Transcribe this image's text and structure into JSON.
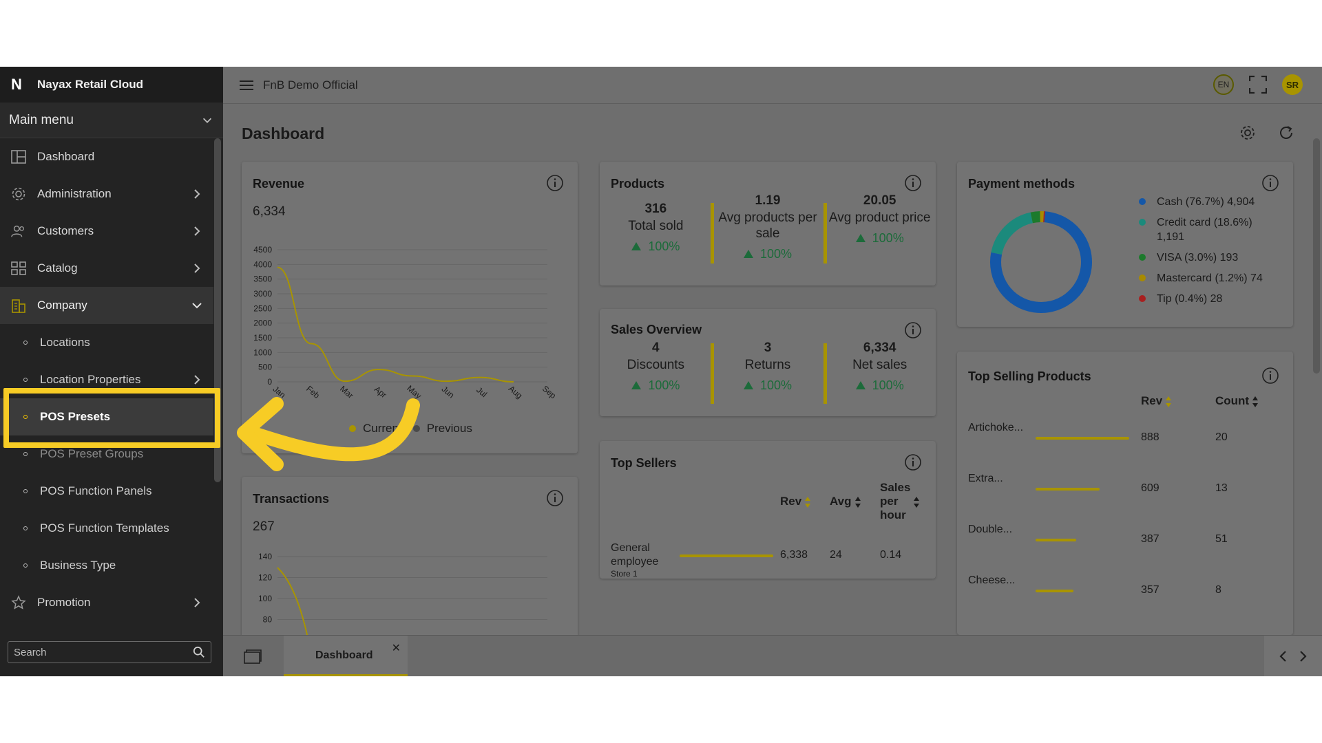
{
  "app": {
    "title": "Nayax Retail Cloud",
    "company": "FnB Demo Official",
    "lang": "EN",
    "user_initials": "SR"
  },
  "sidebar": {
    "main_menu": "Main menu",
    "items": [
      {
        "label": "Dashboard",
        "icon": "dashboard-icon"
      },
      {
        "label": "Administration",
        "icon": "gear-icon"
      },
      {
        "label": "Customers",
        "icon": "users-icon"
      },
      {
        "label": "Catalog",
        "icon": "grid-icon"
      },
      {
        "label": "Company",
        "icon": "building-icon"
      }
    ],
    "company_sub": [
      {
        "label": "Locations"
      },
      {
        "label": "Location Properties"
      },
      {
        "label": "POS Presets"
      },
      {
        "label": "POS Preset Groups"
      },
      {
        "label": "POS Function Panels"
      },
      {
        "label": "POS Function Templates"
      },
      {
        "label": "Business Type"
      }
    ],
    "promotion": "Promotion",
    "search_placeholder": "Search"
  },
  "page": {
    "title": "Dashboard"
  },
  "revenue": {
    "title": "Revenue",
    "total": "6,334",
    "legend_current": "Current",
    "legend_previous": "Previous",
    "chart_data": {
      "type": "line",
      "categories": [
        "Jan",
        "Feb",
        "Mar",
        "Apr",
        "May",
        "Jun",
        "Jul",
        "Aug",
        "Sep"
      ],
      "yticks": [
        "4500",
        "4000",
        "3500",
        "3000",
        "2500",
        "2000",
        "1500",
        "1000",
        "500",
        "0"
      ],
      "ylim": [
        0,
        4500
      ],
      "series": [
        {
          "name": "Current",
          "values": [
            3900,
            1300,
            20,
            420,
            200,
            20,
            150,
            0,
            null
          ],
          "color": "#a89400"
        }
      ]
    }
  },
  "products": {
    "title": "Products",
    "stats": [
      {
        "value": "316",
        "label": "Total sold",
        "pct": "100%"
      },
      {
        "value": "1.19",
        "label": "Avg products per sale",
        "pct": "100%"
      },
      {
        "value": "20.05",
        "label": "Avg product price",
        "pct": "100%"
      }
    ]
  },
  "payment": {
    "title": "Payment methods",
    "items": [
      {
        "label": "Cash (76.7%) 4,904",
        "color": "#1457a8",
        "value": 76.7
      },
      {
        "label": "Credit card (18.6%) 1,191",
        "color": "#1b8a7c",
        "value": 18.6
      },
      {
        "label": "VISA (3.0%) 193",
        "color": "#1c7a2c",
        "value": 3.0
      },
      {
        "label": "Mastercard (1.2%) 74",
        "color": "#a88a00",
        "value": 1.2
      },
      {
        "label": "Tip (0.4%) 28",
        "color": "#a82020",
        "value": 0.4
      }
    ]
  },
  "sales": {
    "title": "Sales Overview",
    "stats": [
      {
        "value": "4",
        "label": "Discounts",
        "pct": "100%"
      },
      {
        "value": "3",
        "label": "Returns",
        "pct": "100%"
      },
      {
        "value": "6,334",
        "label": "Net sales",
        "pct": "100%"
      }
    ]
  },
  "top_sellers": {
    "title": "Top Sellers",
    "col_rev": "Rev",
    "col_avg": "Avg",
    "col_sph": "Sales per hour",
    "rows": [
      {
        "name": "General employee",
        "store": "Store 1",
        "rev": "6,338",
        "avg": "24",
        "sph": "0.14",
        "bar": 1.0
      }
    ]
  },
  "transactions": {
    "title": "Transactions",
    "total": "267",
    "yticks": [
      "140",
      "120",
      "100",
      "80"
    ]
  },
  "top_products": {
    "title": "Top Selling Products",
    "col_rev": "Rev",
    "col_count": "Count",
    "rows": [
      {
        "name": "Artichoke...",
        "rev": "888",
        "count": "20",
        "bar": 1.0
      },
      {
        "name": "Extra...",
        "rev": "609",
        "count": "13",
        "bar": 0.686
      },
      {
        "name": "Double...",
        "rev": "387",
        "count": "51",
        "bar": 0.436
      },
      {
        "name": "Cheese...",
        "rev": "357",
        "count": "8",
        "bar": 0.402
      }
    ]
  },
  "tabs": [
    {
      "label": "Dashboard"
    }
  ]
}
